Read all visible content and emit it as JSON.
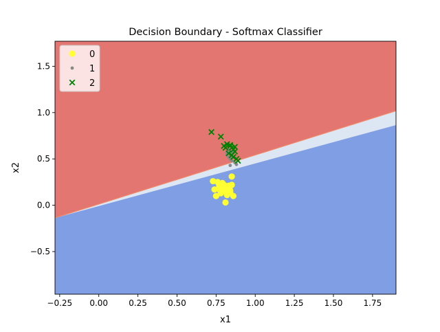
{
  "chart_data": {
    "type": "scatter",
    "title": "Decision Boundary - Softmax Classifier",
    "xlabel": "x1",
    "ylabel": "x2",
    "xlim": [
      -0.28,
      1.9
    ],
    "ylim": [
      -0.96,
      1.77
    ],
    "xticks": [
      -0.25,
      0.0,
      0.25,
      0.5,
      0.75,
      1.0,
      1.25,
      1.5,
      1.75
    ],
    "xtick_labels": [
      "−0.25",
      "0.00",
      "0.25",
      "0.50",
      "0.75",
      "1.00",
      "1.25",
      "1.50",
      "1.75"
    ],
    "yticks": [
      -0.5,
      0.0,
      0.5,
      1.0,
      1.5
    ],
    "ytick_labels": [
      "−0.5",
      "0.0",
      "0.5",
      "1.0",
      "1.5"
    ],
    "grid": false,
    "legend_position": "top-left",
    "regions": {
      "boundary_upper": {
        "slope": 0.53,
        "intercept": 0.012
      },
      "boundary_lower": {
        "slope": 0.46,
        "intercept": -0.009
      },
      "colors": {
        "class_2_region": "#e37671",
        "class_1_region": "#dde6f3",
        "class_0_region": "#7f9ee3",
        "boundary_edge": "#f08a6a"
      }
    },
    "series": [
      {
        "name": "0",
        "marker": "circle",
        "color": "#ffff33",
        "x": [
          0.73,
          0.76,
          0.78,
          0.8,
          0.82,
          0.84,
          0.77,
          0.79,
          0.81,
          0.83,
          0.85,
          0.75,
          0.78,
          0.8,
          0.82,
          0.84,
          0.86,
          0.81,
          0.83,
          0.79,
          0.77,
          0.85,
          0.74,
          0.82
        ],
        "y": [
          0.26,
          0.25,
          0.22,
          0.2,
          0.18,
          0.16,
          0.17,
          0.15,
          0.19,
          0.21,
          0.31,
          0.1,
          0.13,
          0.22,
          0.11,
          0.14,
          0.1,
          0.03,
          0.18,
          0.24,
          0.21,
          0.22,
          0.17,
          0.12
        ]
      },
      {
        "name": "1",
        "marker": "point",
        "color": "#888888",
        "x": [
          0.82,
          0.83,
          0.84,
          0.85,
          0.86,
          0.84,
          0.85,
          0.87,
          0.88,
          0.86,
          0.83,
          0.84,
          0.85,
          0.82
        ],
        "y": [
          0.55,
          0.52,
          0.5,
          0.48,
          0.52,
          0.43,
          0.56,
          0.46,
          0.44,
          0.58,
          0.6,
          0.58,
          0.53,
          0.57
        ]
      },
      {
        "name": "2",
        "marker": "x",
        "color": "#008000",
        "x": [
          0.72,
          0.78,
          0.8,
          0.81,
          0.82,
          0.84,
          0.85,
          0.86,
          0.87,
          0.83,
          0.85,
          0.86,
          0.88,
          0.89,
          0.84,
          0.87
        ],
        "y": [
          0.79,
          0.74,
          0.64,
          0.62,
          0.66,
          0.64,
          0.62,
          0.6,
          0.58,
          0.56,
          0.54,
          0.52,
          0.5,
          0.48,
          0.65,
          0.63
        ]
      }
    ]
  }
}
